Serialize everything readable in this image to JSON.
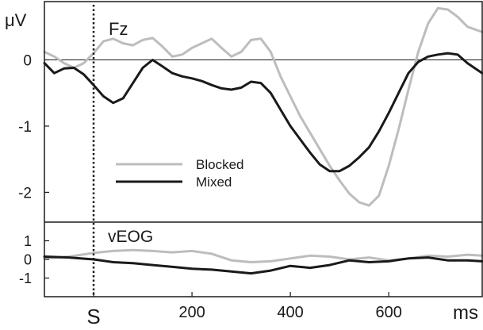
{
  "chart_data": {
    "type": "line",
    "xlim": [
      -100,
      790
    ],
    "x_ticks": [
      {
        "value": 0,
        "label": "S"
      },
      {
        "value": 200,
        "label": "200"
      },
      {
        "value": 400,
        "label": "400"
      },
      {
        "value": 600,
        "label": "600"
      }
    ],
    "x_unit": "ms",
    "stimulus_onset": 0,
    "grid": false,
    "legend": {
      "placement": "center-left",
      "entries": [
        {
          "label": "Blocked",
          "color": "#bdbdbd"
        },
        {
          "label": "Mixed",
          "color": "#1a1a1a"
        }
      ]
    },
    "panels": [
      {
        "label": "Fz",
        "y_unit": "μV",
        "ylim": [
          -2.45,
          0.88
        ],
        "y_ticks": [
          0,
          -1,
          -2
        ],
        "series": [
          {
            "name": "Blocked",
            "color": "#bdbdbd",
            "x": [
              -100,
              -80,
              -60,
              -40,
              -20,
              0,
              20,
              40,
              60,
              80,
              100,
              120,
              140,
              160,
              180,
              200,
              220,
              240,
              260,
              280,
              300,
              320,
              340,
              360,
              380,
              400,
              420,
              440,
              460,
              480,
              500,
              520,
              540,
              560,
              580,
              600,
              620,
              640,
              660,
              680,
              700,
              720,
              740,
              760,
              790
            ],
            "y": [
              0.12,
              0.05,
              -0.05,
              -0.12,
              -0.05,
              0.1,
              0.28,
              0.32,
              0.25,
              0.22,
              0.3,
              0.33,
              0.2,
              0.05,
              0.08,
              0.18,
              0.25,
              0.32,
              0.18,
              0.05,
              0.12,
              0.3,
              0.32,
              0.12,
              -0.25,
              -0.55,
              -0.85,
              -1.1,
              -1.35,
              -1.6,
              -1.82,
              -2.02,
              -2.15,
              -2.2,
              -2.05,
              -1.6,
              -1.05,
              -0.45,
              0.12,
              0.55,
              0.78,
              0.76,
              0.65,
              0.5,
              0.42
            ]
          },
          {
            "name": "Mixed",
            "color": "#1a1a1a",
            "x": [
              -100,
              -80,
              -60,
              -40,
              -20,
              0,
              20,
              40,
              60,
              80,
              100,
              120,
              140,
              160,
              180,
              200,
              220,
              240,
              260,
              280,
              300,
              320,
              340,
              360,
              380,
              400,
              420,
              440,
              460,
              480,
              500,
              520,
              540,
              560,
              580,
              600,
              620,
              640,
              660,
              680,
              700,
              720,
              740,
              760,
              790
            ],
            "y": [
              -0.05,
              -0.2,
              -0.13,
              -0.12,
              -0.22,
              -0.38,
              -0.55,
              -0.65,
              -0.58,
              -0.35,
              -0.12,
              0.0,
              -0.1,
              -0.2,
              -0.25,
              -0.28,
              -0.32,
              -0.38,
              -0.43,
              -0.45,
              -0.42,
              -0.33,
              -0.35,
              -0.5,
              -0.75,
              -1.0,
              -1.2,
              -1.4,
              -1.58,
              -1.68,
              -1.68,
              -1.6,
              -1.47,
              -1.32,
              -1.08,
              -0.8,
              -0.5,
              -0.2,
              -0.03,
              0.05,
              0.08,
              0.1,
              0.08,
              -0.05,
              -0.2
            ]
          }
        ]
      },
      {
        "label": "vEOG",
        "ylim": [
          -2.0,
          2.0
        ],
        "y_ticks": [
          1,
          0,
          -1
        ],
        "series": [
          {
            "name": "Blocked",
            "color": "#bdbdbd",
            "x": [
              -100,
              -50,
              0,
              40,
              80,
              120,
              160,
              200,
              240,
              280,
              320,
              360,
              400,
              440,
              480,
              520,
              560,
              600,
              640,
              680,
              720,
              760,
              790
            ],
            "y": [
              0.05,
              0.15,
              0.35,
              0.45,
              0.5,
              0.45,
              0.38,
              0.45,
              0.3,
              -0.05,
              -0.15,
              -0.1,
              0.05,
              0.2,
              0.15,
              0.0,
              0.1,
              -0.05,
              0.05,
              0.2,
              0.15,
              0.25,
              0.2
            ]
          },
          {
            "name": "Mixed",
            "color": "#1a1a1a",
            "x": [
              -100,
              -50,
              0,
              40,
              80,
              120,
              160,
              200,
              240,
              280,
              320,
              360,
              400,
              440,
              480,
              520,
              560,
              600,
              640,
              680,
              720,
              760,
              790
            ],
            "y": [
              0.15,
              0.1,
              0.0,
              -0.15,
              -0.2,
              -0.3,
              -0.4,
              -0.5,
              -0.55,
              -0.65,
              -0.75,
              -0.6,
              -0.35,
              -0.45,
              -0.3,
              -0.05,
              -0.15,
              -0.1,
              0.05,
              0.1,
              -0.05,
              -0.05,
              -0.1
            ]
          }
        ]
      }
    ]
  }
}
